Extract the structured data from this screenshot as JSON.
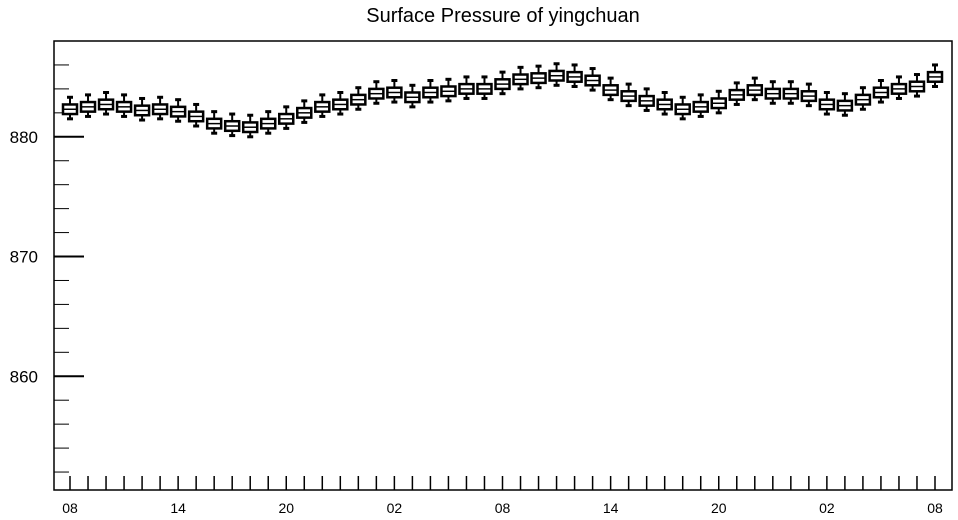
{
  "chart_data": {
    "type": "box",
    "title": "Surface Pressure of yingchuan",
    "xlabel": "",
    "ylabel": "",
    "ylim": [
      850.5,
      888
    ],
    "y_ticks": [
      860,
      870,
      880
    ],
    "x_tick_labels": [
      "08",
      "14",
      "20",
      "02",
      "08",
      "14",
      "20",
      "02",
      "08"
    ],
    "grid": false,
    "colors": {
      "box_fill": "#ffffff",
      "stroke": "#000000"
    },
    "series": [
      {
        "medians": [
          882.3,
          882.5,
          882.7,
          882.5,
          882.2,
          882.3,
          882.1,
          881.7,
          881.1,
          880.9,
          880.8,
          881.1,
          881.5,
          882.0,
          882.5,
          882.7,
          883.1,
          883.6,
          883.7,
          883.3,
          883.7,
          883.8,
          884.0,
          884.0,
          884.4,
          884.8,
          884.9,
          885.1,
          885.0,
          884.7,
          883.9,
          883.4,
          883.0,
          882.7,
          882.3,
          882.5,
          882.8,
          883.5,
          883.9,
          883.6,
          883.6,
          883.4,
          882.7,
          882.6,
          883.1,
          883.7,
          884.0,
          884.2,
          885.0
        ]
      }
    ]
  }
}
